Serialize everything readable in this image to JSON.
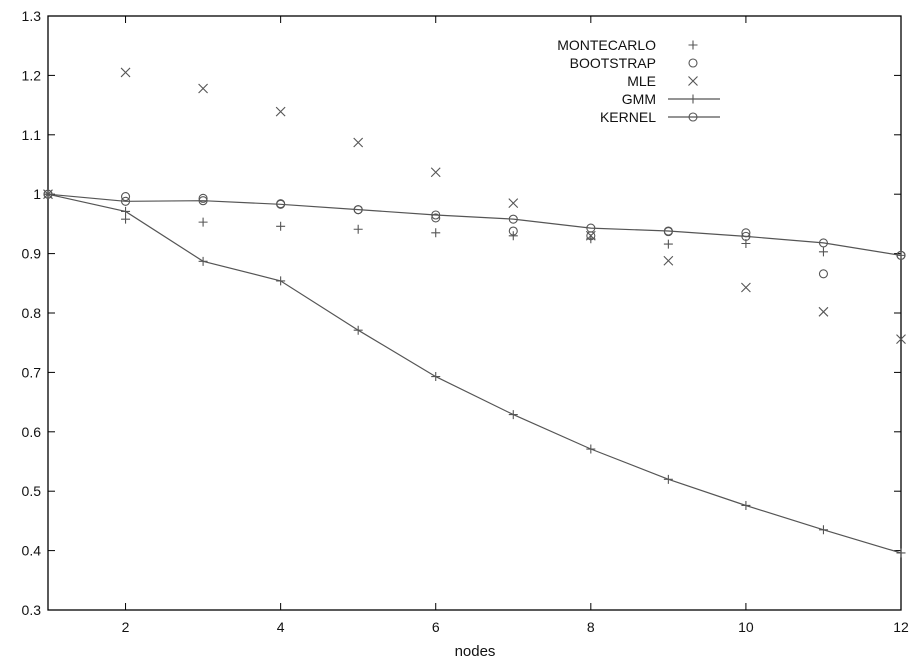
{
  "chart_data": {
    "type": "scatter",
    "title": "",
    "xlabel": "nodes",
    "ylabel": "",
    "xlim": [
      1,
      12
    ],
    "ylim": [
      0.3,
      1.3
    ],
    "xticks": [
      2,
      4,
      6,
      8,
      10,
      12
    ],
    "yticks": [
      0.3,
      0.4,
      0.5,
      0.6,
      0.7,
      0.8,
      0.9,
      1.0,
      1.1,
      1.2,
      1.3
    ],
    "ytick_labels": [
      "0.3",
      "0.4",
      "0.5",
      "0.6",
      "0.7",
      "0.8",
      "0.9",
      "1",
      "1.1",
      "1.2",
      "1.3"
    ],
    "grid": false,
    "legend_position": "top-right",
    "x": [
      1,
      2,
      3,
      4,
      5,
      6,
      7,
      8,
      9,
      10,
      11,
      12
    ],
    "series": [
      {
        "name": "MONTECARLO",
        "marker": "plus",
        "line": false,
        "values": [
          1.0,
          0.958,
          0.953,
          0.946,
          0.941,
          0.935,
          0.93,
          0.925,
          0.916,
          0.917,
          0.903,
          0.897
        ]
      },
      {
        "name": "BOOTSTRAP",
        "marker": "circle",
        "line": false,
        "values": [
          1.0,
          0.996,
          0.993,
          0.984,
          0.974,
          0.96,
          0.938,
          0.93,
          0.937,
          0.935,
          0.866,
          0.897
        ]
      },
      {
        "name": "MLE",
        "marker": "cross",
        "line": false,
        "values": [
          1.0,
          1.205,
          1.178,
          1.139,
          1.087,
          1.037,
          0.985,
          0.93,
          0.888,
          0.843,
          0.802,
          0.756
        ]
      },
      {
        "name": "GMM",
        "marker": "plus",
        "line": true,
        "values": [
          1.0,
          0.971,
          0.887,
          0.854,
          0.771,
          0.693,
          0.629,
          0.571,
          0.52,
          0.476,
          0.435,
          0.396
        ]
      },
      {
        "name": "KERNEL",
        "marker": "circle",
        "line": true,
        "values": [
          1.0,
          0.988,
          0.989,
          0.983,
          0.974,
          0.965,
          0.958,
          0.943,
          0.938,
          0.929,
          0.918,
          0.897
        ]
      }
    ]
  }
}
